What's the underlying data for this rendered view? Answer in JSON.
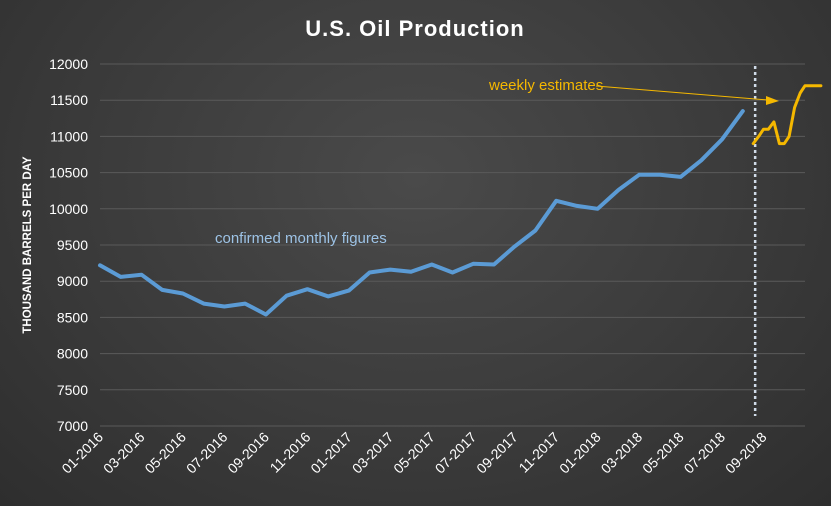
{
  "chart_data": {
    "type": "line",
    "title": "U.S. Oil Production",
    "xlabel": "",
    "ylabel": "THOUSAND BARRELS PER DAY",
    "ylim": [
      7000,
      12000
    ],
    "yticks": [
      7000,
      7500,
      8000,
      8500,
      9000,
      9500,
      10000,
      10500,
      11000,
      11500,
      12000
    ],
    "grid": true,
    "x_tick_labels": [
      "01-2016",
      "03-2016",
      "05-2016",
      "07-2016",
      "09-2016",
      "11-2016",
      "01-2017",
      "03-2017",
      "05-2017",
      "07-2017",
      "09-2017",
      "11-2017",
      "01-2018",
      "03-2018",
      "05-2018",
      "07-2018",
      "09-2018"
    ],
    "xlim": [
      "2016-01",
      "2018-11"
    ],
    "series": [
      {
        "name": "confirmed monthly figures",
        "color": "#5b9bd5",
        "x": [
          "2016-01",
          "2016-02",
          "2016-03",
          "2016-04",
          "2016-05",
          "2016-06",
          "2016-07",
          "2016-08",
          "2016-09",
          "2016-10",
          "2016-11",
          "2016-12",
          "2017-01",
          "2017-02",
          "2017-03",
          "2017-04",
          "2017-05",
          "2017-06",
          "2017-07",
          "2017-08",
          "2017-09",
          "2017-10",
          "2017-11",
          "2017-12",
          "2018-01",
          "2018-02",
          "2018-03",
          "2018-04",
          "2018-05",
          "2018-06",
          "2018-07",
          "2018-08"
        ],
        "values": [
          9220,
          9060,
          9090,
          8880,
          8830,
          8690,
          8650,
          8690,
          8540,
          8800,
          8890,
          8790,
          8870,
          9120,
          9160,
          9130,
          9230,
          9120,
          9240,
          9230,
          9480,
          9700,
          10110,
          10040,
          10000,
          10260,
          10470,
          10470,
          10440,
          10670,
          10960,
          11350
        ]
      },
      {
        "name": "weekly estimates",
        "color": "#f5b800",
        "x": [
          "2018-08-16",
          "2018-08-24",
          "2018-09-01",
          "2018-09-08",
          "2018-09-16",
          "2018-09-24",
          "2018-10-01",
          "2018-10-08",
          "2018-10-16",
          "2018-10-24",
          "2018-11-01",
          "2018-11-08",
          "2018-11-16",
          "2018-11-24"
        ],
        "values": [
          10900,
          11000,
          11100,
          11100,
          11200,
          10900,
          10900,
          11000,
          11400,
          11600,
          11700,
          11700,
          11700,
          11700
        ]
      }
    ],
    "annotations": [
      {
        "text": "confirmed monthly figures",
        "color": "#9dc3e6"
      },
      {
        "text": "weekly estimates",
        "color": "#f5b800"
      }
    ],
    "divider_x": "2018-08-16",
    "colors": {
      "background": "#3b3b3b",
      "grid": "#5a5a5a",
      "text": "#ffffff",
      "divider": "#d0dbe8"
    }
  }
}
